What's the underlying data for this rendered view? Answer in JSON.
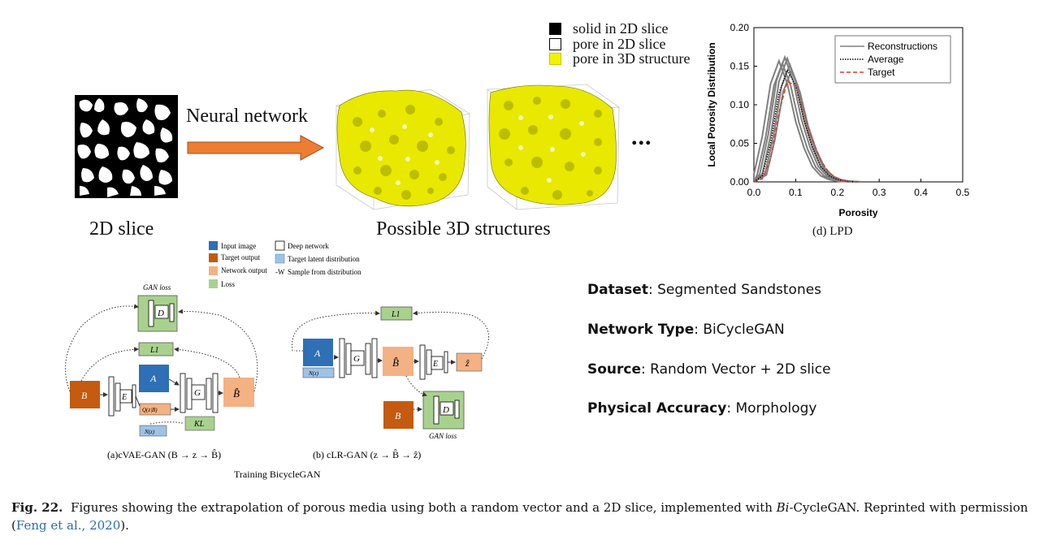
{
  "top": {
    "legend": [
      {
        "label": "solid in 2D slice",
        "color": "#000000"
      },
      {
        "label": "pore in 2D slice",
        "color": "#ffffff"
      },
      {
        "label": "pore in 3D structure",
        "color": "#f2f200"
      }
    ],
    "arrow_label": "Neural network",
    "slice_label": "2D slice",
    "structures_label": "Possible 3D structures",
    "ellipsis": "..."
  },
  "lpd_chart": {
    "caption": "(d) LPD",
    "chart_data": {
      "type": "line",
      "xlabel": "Porosity",
      "ylabel": "Local Porosity Distribution",
      "xlim": [
        0.0,
        0.5
      ],
      "ylim": [
        0.0,
        0.2
      ],
      "xticks": [
        "0.0",
        "0.1",
        "0.2",
        "0.3",
        "0.4",
        "0.5"
      ],
      "yticks": [
        "0.00",
        "0.05",
        "0.10",
        "0.15",
        "0.20"
      ],
      "legend_position": "top-right",
      "series": [
        {
          "name": "Reconstructions",
          "style": "solid",
          "color": "#808080",
          "x": [
            0.0,
            0.02,
            0.04,
            0.06,
            0.08,
            0.1,
            0.12,
            0.14,
            0.16,
            0.18,
            0.2,
            0.22,
            0.25
          ],
          "y": [
            0.0,
            0.01,
            0.06,
            0.13,
            0.16,
            0.13,
            0.08,
            0.045,
            0.02,
            0.008,
            0.003,
            0.001,
            0.0
          ]
        },
        {
          "name": "Average",
          "style": "dotted",
          "color": "#000000",
          "x": [
            0.0,
            0.02,
            0.04,
            0.06,
            0.08,
            0.1,
            0.12,
            0.14,
            0.16,
            0.18,
            0.2,
            0.22,
            0.25
          ],
          "y": [
            0.0,
            0.008,
            0.05,
            0.115,
            0.145,
            0.125,
            0.08,
            0.045,
            0.02,
            0.008,
            0.003,
            0.001,
            0.0
          ]
        },
        {
          "name": "Target",
          "style": "dashed",
          "color": "#e23a2a",
          "x": [
            0.0,
            0.02,
            0.04,
            0.06,
            0.08,
            0.1,
            0.12,
            0.14,
            0.16,
            0.18,
            0.2,
            0.22,
            0.25
          ],
          "y": [
            0.0,
            0.004,
            0.03,
            0.09,
            0.13,
            0.125,
            0.09,
            0.055,
            0.028,
            0.012,
            0.004,
            0.001,
            0.0
          ]
        }
      ]
    }
  },
  "diagram": {
    "legend": [
      {
        "label": "Input image",
        "color": "#2f6fb5"
      },
      {
        "label": "Target output",
        "color": "#c55a11"
      },
      {
        "label": "Network output",
        "color": "#f4b183"
      },
      {
        "label": "Loss",
        "color": "#a9d18e"
      },
      {
        "label": "Deep network",
        "color": "#ffffff"
      },
      {
        "label": "Target latent distribution",
        "color": "#9dc3e6"
      },
      {
        "label": "Sample from distribution",
        "color": ""
      }
    ],
    "sample_symbol": "-W",
    "a": {
      "gan_loss": "GAN loss",
      "D": "D",
      "L1": "L1",
      "A": "A",
      "B": "B",
      "E": "E",
      "G": "G",
      "B_hat": "B̂",
      "Q": "Q(z|B)",
      "N": "N(z)",
      "KL": "KL",
      "caption": "(a)cVAE-GAN (B → z → B̂)"
    },
    "b": {
      "L1": "L1",
      "A": "A",
      "N": "N(z)",
      "G": "G",
      "B_hat": "B̂",
      "E": "E",
      "z_hat": "ẑ",
      "B": "B",
      "D": "D",
      "gan_loss": "GAN loss",
      "caption": "(b) cLR-GAN (z → B̂ → ẑ)"
    },
    "training_label": "Training BicycleGAN"
  },
  "info": {
    "dataset_key": "Dataset",
    "dataset_val": ": Segmented Sandstones",
    "network_key": "Network Type",
    "network_val": ": BiCycleGAN",
    "source_key": "Source",
    "source_val": ": Random Vector + 2D slice",
    "accuracy_key": "Physical Accuracy",
    "accuracy_val": ": Morphology"
  },
  "caption": {
    "fig_label": "Fig. 22.",
    "text_1": "Figures showing the extrapolation of porous media using both a random vector and a 2D slice, implemented with ",
    "text_italic": "Bi",
    "text_2": "-CycleGAN. Reprinted with permission (",
    "citation": "Feng et al., 2020",
    "text_3": ")."
  }
}
